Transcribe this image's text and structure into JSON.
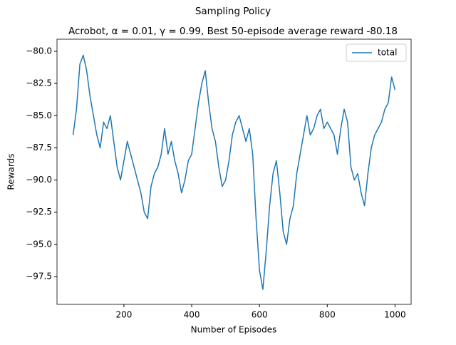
{
  "chart_data": {
    "type": "line",
    "title": "Sampling Policy",
    "subtitle": "Acrobot, α = 0.01, γ = 0.99, Best 50-episode average reward -80.18",
    "x_label": "Number of Episodes",
    "y_label": "Rewards",
    "x": [
      50,
      60,
      70,
      80,
      90,
      100,
      110,
      120,
      130,
      140,
      150,
      160,
      170,
      180,
      190,
      200,
      210,
      220,
      230,
      240,
      250,
      260,
      270,
      280,
      290,
      300,
      310,
      320,
      330,
      340,
      350,
      360,
      370,
      380,
      390,
      400,
      410,
      420,
      430,
      440,
      450,
      460,
      470,
      480,
      490,
      500,
      510,
      520,
      530,
      540,
      550,
      560,
      570,
      580,
      590,
      600,
      610,
      620,
      630,
      640,
      650,
      660,
      670,
      680,
      690,
      700,
      710,
      720,
      730,
      740,
      750,
      760,
      770,
      780,
      790,
      800,
      810,
      820,
      830,
      840,
      850,
      860,
      870,
      880,
      890,
      900,
      910,
      920,
      930,
      940,
      950,
      960,
      970,
      980,
      990,
      1000
    ],
    "series": [
      {
        "name": "total",
        "color": "#1f77b4",
        "values": [
          -86.5,
          -84.5,
          -81,
          -80.3,
          -81.5,
          -83.5,
          -85,
          -86.5,
          -87.5,
          -85.5,
          -86,
          -85,
          -87,
          -89,
          -90,
          -88.5,
          -87,
          -88,
          -89,
          -90,
          -91,
          -92.5,
          -93,
          -90.5,
          -89.5,
          -89,
          -88,
          -86,
          -88,
          -87,
          -88.5,
          -89.5,
          -91,
          -90,
          -88.5,
          -88,
          -86,
          -84,
          -82.5,
          -81.5,
          -84,
          -86,
          -87,
          -89,
          -90.5,
          -90,
          -88.5,
          -86.5,
          -85.5,
          -85,
          -86,
          -87,
          -86,
          -88,
          -93,
          -97,
          -98.5,
          -95.5,
          -92,
          -89.5,
          -88.5,
          -91,
          -94,
          -95,
          -93,
          -92,
          -89.5,
          -88,
          -86.5,
          -85,
          -86.5,
          -86,
          -85,
          -84.5,
          -86,
          -85.5,
          -86,
          -86.5,
          -88,
          -86,
          -84.5,
          -85.5,
          -89,
          -90,
          -89.5,
          -91,
          -92,
          -89.5,
          -87.5,
          -86.5,
          -86,
          -85.5,
          -84.5,
          -84,
          -82,
          -83
        ]
      }
    ],
    "xlim": [
      2.5,
      1047.5
    ],
    "ylim": [
      -99.66,
      -79.06
    ],
    "xticks": [
      200,
      400,
      600,
      800,
      1000
    ],
    "yticks": [
      {
        "value": -80,
        "label": "−80.0"
      },
      {
        "value": -82.5,
        "label": "−82.5"
      },
      {
        "value": -85,
        "label": "−85.0"
      },
      {
        "value": -87.5,
        "label": "−87.5"
      },
      {
        "value": -90,
        "label": "−90.0"
      },
      {
        "value": -92.5,
        "label": "−92.5"
      },
      {
        "value": -95,
        "label": "−95.0"
      },
      {
        "value": -97.5,
        "label": "−97.5"
      }
    ],
    "legend": "upper right"
  }
}
